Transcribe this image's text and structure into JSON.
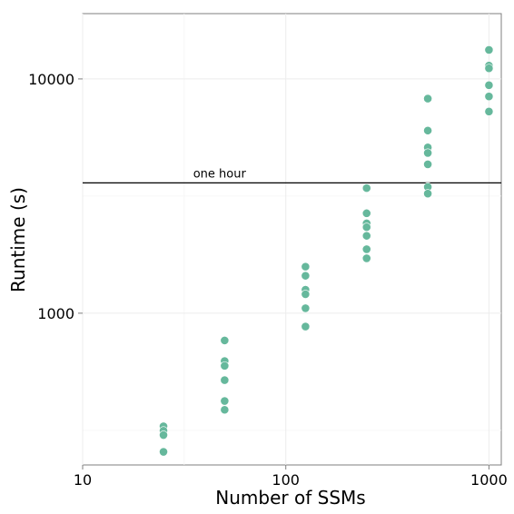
{
  "chart_data": {
    "type": "scatter",
    "xlabel": "Number of SSMs",
    "ylabel": "Runtime (s)",
    "x_scale": "log",
    "y_scale": "log",
    "xlim": [
      10,
      1150
    ],
    "ylim": [
      225,
      19000
    ],
    "x_ticks": [
      {
        "value": 10,
        "label": "10"
      },
      {
        "value": 100,
        "label": "100"
      },
      {
        "value": 1000,
        "label": "1000"
      }
    ],
    "y_ticks": [
      {
        "value": 1000,
        "label": "1000"
      },
      {
        "value": 10000,
        "label": "10000"
      }
    ],
    "grid": true,
    "point_color": "#66b89c",
    "reference_line": {
      "y": 3600,
      "label": "one hour",
      "label_x": 35,
      "color": "#000000"
    },
    "points": [
      {
        "x": 25,
        "y": 329
      },
      {
        "x": 25,
        "y": 315
      },
      {
        "x": 25,
        "y": 302
      },
      {
        "x": 25,
        "y": 256
      },
      {
        "x": 50,
        "y": 765
      },
      {
        "x": 50,
        "y": 625
      },
      {
        "x": 50,
        "y": 596
      },
      {
        "x": 50,
        "y": 518
      },
      {
        "x": 50,
        "y": 422
      },
      {
        "x": 50,
        "y": 387
      },
      {
        "x": 125,
        "y": 1580
      },
      {
        "x": 125,
        "y": 1445
      },
      {
        "x": 125,
        "y": 1260
      },
      {
        "x": 125,
        "y": 1205
      },
      {
        "x": 125,
        "y": 1050
      },
      {
        "x": 125,
        "y": 877
      },
      {
        "x": 250,
        "y": 3420
      },
      {
        "x": 250,
        "y": 2670
      },
      {
        "x": 250,
        "y": 2420
      },
      {
        "x": 250,
        "y": 2330
      },
      {
        "x": 250,
        "y": 2140
      },
      {
        "x": 250,
        "y": 1875
      },
      {
        "x": 250,
        "y": 1715
      },
      {
        "x": 500,
        "y": 8240
      },
      {
        "x": 500,
        "y": 6020
      },
      {
        "x": 500,
        "y": 5100
      },
      {
        "x": 500,
        "y": 4830
      },
      {
        "x": 500,
        "y": 4320
      },
      {
        "x": 500,
        "y": 3460
      },
      {
        "x": 500,
        "y": 3240
      },
      {
        "x": 1000,
        "y": 13300
      },
      {
        "x": 1000,
        "y": 11400
      },
      {
        "x": 1000,
        "y": 11100
      },
      {
        "x": 1000,
        "y": 9400
      },
      {
        "x": 1000,
        "y": 8420
      },
      {
        "x": 1000,
        "y": 7260
      }
    ]
  }
}
